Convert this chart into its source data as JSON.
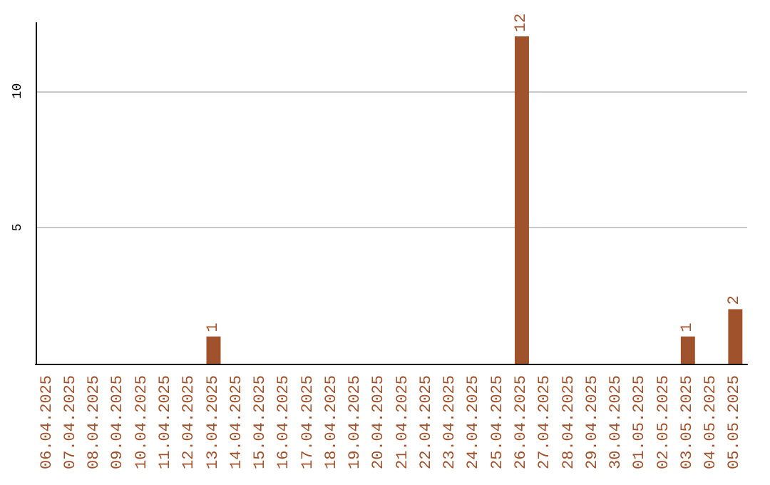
{
  "chart_data": {
    "type": "bar",
    "categories": [
      "06.04.2025",
      "07.04.2025",
      "08.04.2025",
      "09.04.2025",
      "10.04.2025",
      "11.04.2025",
      "12.04.2025",
      "13.04.2025",
      "14.04.2025",
      "15.04.2025",
      "16.04.2025",
      "17.04.2025",
      "18.04.2025",
      "19.04.2025",
      "20.04.2025",
      "21.04.2025",
      "22.04.2025",
      "23.04.2025",
      "24.04.2025",
      "25.04.2025",
      "26.04.2025",
      "27.04.2025",
      "28.04.2025",
      "29.04.2025",
      "30.04.2025",
      "01.05.2025",
      "02.05.2025",
      "03.05.2025",
      "04.05.2025",
      "05.05.2025"
    ],
    "values": [
      0,
      0,
      0,
      0,
      0,
      0,
      0,
      1,
      0,
      0,
      0,
      0,
      0,
      0,
      0,
      0,
      0,
      0,
      0,
      0,
      12,
      0,
      0,
      0,
      0,
      0,
      0,
      1,
      0,
      2
    ],
    "value_labels": [
      null,
      null,
      null,
      null,
      null,
      null,
      null,
      "1",
      null,
      null,
      null,
      null,
      null,
      null,
      null,
      null,
      null,
      null,
      null,
      null,
      "12",
      null,
      null,
      null,
      null,
      null,
      null,
      "1",
      null,
      "2"
    ],
    "color": "#a0522d",
    "ylim": [
      0,
      12.5
    ],
    "yticks": [
      5,
      10
    ],
    "grid": "y"
  }
}
